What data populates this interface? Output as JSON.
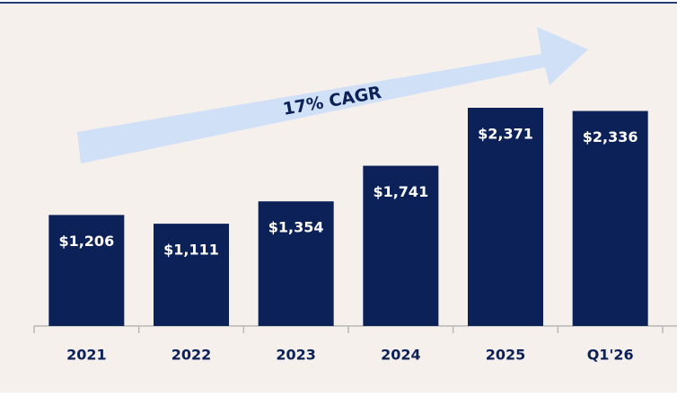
{
  "chart_data": {
    "type": "bar",
    "annotation": "17% CAGR",
    "categories": [
      "2021",
      "2022",
      "2023",
      "2024",
      "2025",
      "Q1'26"
    ],
    "values": [
      1206,
      1111,
      1354,
      1741,
      2371,
      2336
    ],
    "value_labels": [
      "$1,206",
      "$1,111",
      "$1,354",
      "$1,741",
      "$2,371",
      "$2,336"
    ],
    "color": "#0b2158"
  }
}
